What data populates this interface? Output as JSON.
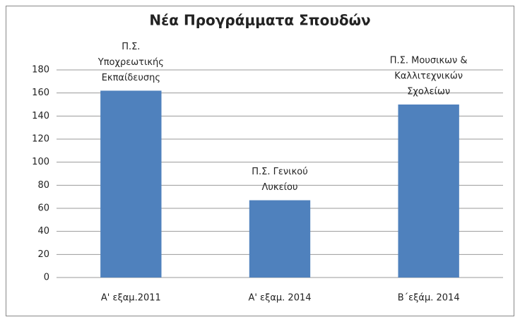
{
  "chart_data": {
    "type": "bar",
    "title": "Νέα Προγράμματα Σπουδών",
    "categories": [
      "Α' εξαμ.2011",
      "Α' εξαμ. 2014",
      "Β΄εξάμ. 2014"
    ],
    "values": [
      162,
      67,
      150
    ],
    "color": "#4f81bd",
    "annotations": [
      [
        "Π.Σ.",
        "Υποχρεωτικής",
        "Εκπαίδευσης"
      ],
      [
        "Π.Σ. Γενικού",
        "Λυκείου"
      ],
      [
        "Π.Σ. Μουσικων  &",
        "Καλλιτεχνικών",
        "Σχολείων"
      ]
    ],
    "ylim": [
      0,
      180
    ],
    "yticks": [
      0,
      20,
      40,
      60,
      80,
      100,
      120,
      140,
      160,
      180
    ],
    "grid": true
  }
}
